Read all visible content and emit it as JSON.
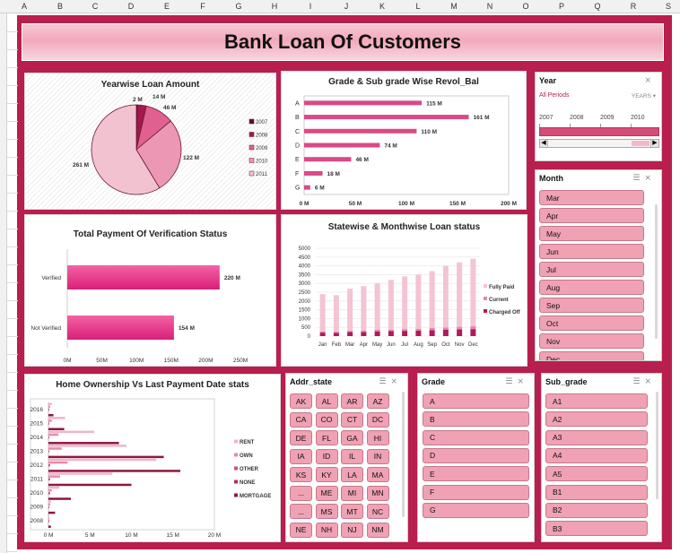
{
  "columns": [
    "A",
    "B",
    "C",
    "D",
    "E",
    "F",
    "G",
    "H",
    "I",
    "J",
    "K",
    "L",
    "M",
    "N",
    "O",
    "P",
    "Q",
    "R",
    "S"
  ],
  "dashboard": {
    "title": "Bank Loan Of Customers"
  },
  "charts": {
    "yearwise": {
      "title": "Yearwise Loan Amount",
      "chart_data": {
        "type": "pie",
        "title": "Yearwise Loan Amount",
        "categories": [
          "2007",
          "2008",
          "2009",
          "2010",
          "2011"
        ],
        "values": [
          2,
          14,
          46,
          122,
          261
        ],
        "labels": [
          "2 M",
          "14 M",
          "46 M",
          "122 M",
          "261 M"
        ],
        "colors": [
          "#5a0f2c",
          "#a3184d",
          "#e0608f",
          "#ec97b3",
          "#f3c2d1"
        ],
        "legend": "right"
      }
    },
    "grade": {
      "title": "Grade & Sub grade Wise Revol_Bal",
      "chart_data": {
        "type": "bar",
        "orientation": "horizontal",
        "categories": [
          "A",
          "B",
          "C",
          "D",
          "E",
          "F",
          "G"
        ],
        "values": [
          115,
          161,
          110,
          74,
          46,
          18,
          6
        ],
        "labels": [
          "115 M",
          "161 M",
          "110 M",
          "74 M",
          "46 M",
          "18 M",
          "6 M"
        ],
        "xticks": [
          "0 M",
          "50 M",
          "100 M",
          "150 M",
          "200 M"
        ],
        "xlim": [
          0,
          200
        ],
        "color": "#d94a86"
      }
    },
    "verification": {
      "title": "Total Payment Of Verification Status",
      "chart_data": {
        "type": "bar",
        "orientation": "horizontal",
        "categories": [
          "Verified",
          "Not Verified"
        ],
        "values": [
          220,
          154
        ],
        "labels": [
          "220 M",
          "154 M"
        ],
        "xticks": [
          "0M",
          "50M",
          "100M",
          "150M",
          "200M",
          "250M"
        ],
        "xlim": [
          0,
          250
        ],
        "color": "#e63a8a"
      }
    },
    "statewise": {
      "title": "Statewise & Monthwise Loan status",
      "chart_data": {
        "type": "bar",
        "stacked": true,
        "categories": [
          "Jan",
          "Feb",
          "Mar",
          "Apr",
          "May",
          "Jun",
          "Jul",
          "Aug",
          "Sep",
          "Oct",
          "Nov",
          "Dec"
        ],
        "series": [
          {
            "name": "Charged Off",
            "values": [
              200,
              190,
              230,
              240,
              270,
              280,
              300,
              320,
              340,
              360,
              380,
              400
            ],
            "color": "#b3185c"
          },
          {
            "name": "Current",
            "values": [
              60,
              60,
              70,
              80,
              90,
              90,
              100,
              100,
              120,
              130,
              150,
              160
            ],
            "color": "#e08aa8"
          },
          {
            "name": "Fully Paid",
            "values": [
              2130,
              2080,
              2400,
              2520,
              2640,
              2830,
              3000,
              3080,
              3240,
              3510,
              3670,
              3840
            ],
            "color": "#f4c4d3"
          }
        ],
        "legend_order": [
          "Fully Paid",
          "Current",
          "Charged Off"
        ],
        "yticks": [
          "0",
          "500",
          "1000",
          "1500",
          "2000",
          "2500",
          "3000",
          "3500",
          "4000",
          "4500",
          "5000"
        ],
        "ylim": [
          0,
          5000
        ]
      }
    },
    "home": {
      "title": "Home Ownership Vs Last Payment Date stats",
      "chart_data": {
        "type": "bar",
        "orientation": "horizontal",
        "categories": [
          "2016",
          "2015",
          "2014",
          "2013",
          "2012",
          "2011",
          "2010",
          "2009",
          "2008"
        ],
        "series": [
          {
            "name": "RENT",
            "values": [
              0.4,
              2.0,
              5.5,
              9.4,
              13.0,
              7.7,
              1.3,
              0.3,
              0.1
            ],
            "color": "#f2b3c6"
          },
          {
            "name": "OWN",
            "values": [
              0.2,
              0.4,
              1.2,
              1.6,
              2.3,
              1.4,
              0.4,
              0.2,
              0.1
            ],
            "color": "#e88aa8"
          },
          {
            "name": "OTHER",
            "values": [
              0.1,
              0.1,
              0.1,
              0.1,
              0.2,
              0.2,
              0.2,
              0.1,
              0.1
            ],
            "color": "#d24d7c"
          },
          {
            "name": "NONE",
            "values": [
              0,
              0,
              0,
              0,
              0,
              0,
              0,
              0,
              0
            ],
            "color": "#b22d5f"
          },
          {
            "name": "MORTGAGE",
            "values": [
              0.6,
              1.9,
              8.5,
              13.9,
              15.9,
              10.0,
              2.7,
              0.8,
              0.3
            ],
            "color": "#8c1843"
          }
        ],
        "xticks": [
          "0 M",
          "5 M",
          "10 M",
          "15 M",
          "20 M"
        ],
        "xlim": [
          0,
          20
        ]
      }
    }
  },
  "slicers": {
    "year": {
      "title": "Year",
      "selection": "All Periods",
      "level": "YEARS",
      "timeline": [
        "2007",
        "2008",
        "2009",
        "2010"
      ]
    },
    "month": {
      "title": "Month",
      "items": [
        "Mar",
        "Apr",
        "May",
        "Jun",
        "Jul",
        "Aug",
        "Sep",
        "Oct",
        "Nov",
        "Dec"
      ]
    },
    "addr_state": {
      "title": "Addr_state",
      "items": [
        "AK",
        "AL",
        "AR",
        "AZ",
        "CA",
        "CO",
        "CT",
        "DC",
        "DE",
        "FL",
        "GA",
        "HI",
        "IA",
        "ID",
        "IL",
        "IN",
        "KS",
        "KY",
        "LA",
        "MA",
        "...",
        "ME",
        "MI",
        "MN",
        "...",
        "MS",
        "MT",
        "NC",
        "NE",
        "NH",
        "NJ",
        "NM"
      ]
    },
    "grade": {
      "title": "Grade",
      "items": [
        "A",
        "B",
        "C",
        "D",
        "E",
        "F",
        "G"
      ]
    },
    "sub_grade": {
      "title": "Sub_grade",
      "items": [
        "A1",
        "A2",
        "A3",
        "A4",
        "A5",
        "B1",
        "B2",
        "B3"
      ]
    }
  }
}
